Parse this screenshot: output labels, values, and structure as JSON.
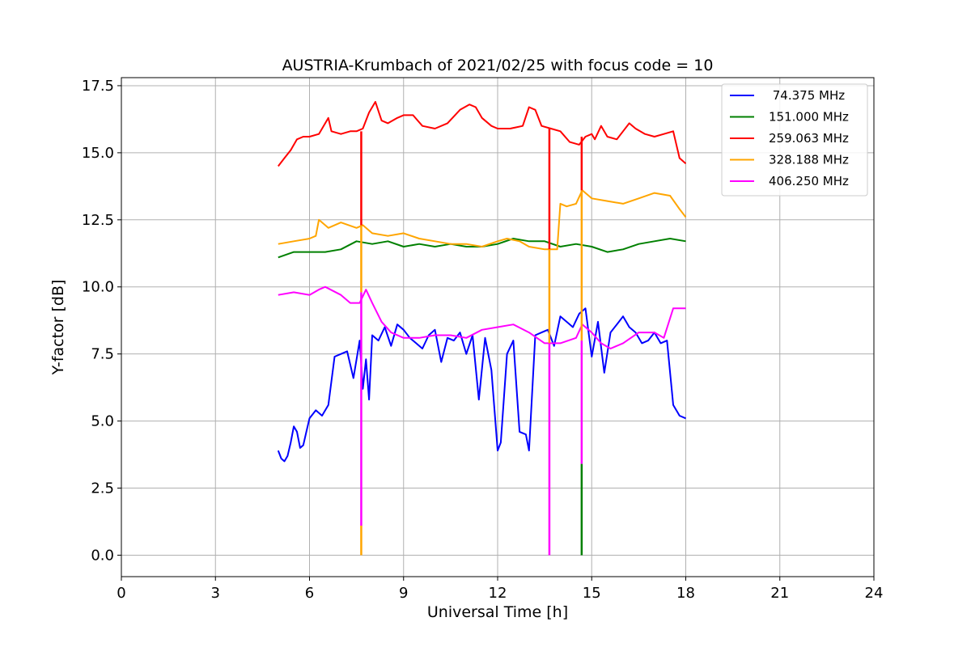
{
  "chart_data": {
    "type": "line",
    "title": "AUSTRIA-Krumbach of 2021/02/25 with focus code = 10",
    "xlabel": "Universal Time [h]",
    "ylabel": "Y-factor [dB]",
    "xlim": [
      0,
      24
    ],
    "ylim": [
      -0.8,
      17.8
    ],
    "xticks": [
      0,
      3,
      6,
      9,
      12,
      15,
      18,
      21,
      24
    ],
    "xtick_labels": [
      "0",
      "3",
      "6",
      "9",
      "12",
      "15",
      "18",
      "21",
      "24"
    ],
    "yticks": [
      0.0,
      2.5,
      5.0,
      7.5,
      10.0,
      12.5,
      15.0,
      17.5
    ],
    "ytick_labels": [
      "0.0",
      "2.5",
      "5.0",
      "7.5",
      "10.0",
      "12.5",
      "15.0",
      "17.5"
    ],
    "grid": true,
    "legend_position": "top-right",
    "series": [
      {
        "name": " 74.375 MHz",
        "color": "#0000ff",
        "x": [
          5.0,
          5.1,
          5.2,
          5.3,
          5.4,
          5.5,
          5.6,
          5.7,
          5.8,
          5.9,
          6.0,
          6.2,
          6.4,
          6.6,
          6.8,
          7.0,
          7.2,
          7.4,
          7.6,
          7.7,
          7.8,
          7.9,
          8.0,
          8.2,
          8.4,
          8.6,
          8.8,
          9.0,
          9.2,
          9.4,
          9.6,
          9.8,
          10.0,
          10.2,
          10.4,
          10.6,
          10.8,
          11.0,
          11.2,
          11.4,
          11.6,
          11.8,
          12.0,
          12.1,
          12.3,
          12.5,
          12.7,
          12.9,
          13.0,
          13.2,
          13.4,
          13.6,
          13.8,
          14.0,
          14.2,
          14.4,
          14.6,
          14.8,
          15.0,
          15.2,
          15.4,
          15.6,
          15.8,
          16.0,
          16.2,
          16.4,
          16.6,
          16.8,
          17.0,
          17.2,
          17.4,
          17.6,
          17.8,
          18.0
        ],
        "values": [
          3.9,
          3.6,
          3.5,
          3.7,
          4.2,
          4.8,
          4.6,
          4.0,
          4.1,
          4.6,
          5.1,
          5.4,
          5.2,
          5.6,
          7.4,
          7.5,
          7.6,
          6.6,
          8.0,
          6.2,
          7.3,
          5.8,
          8.2,
          8.0,
          8.5,
          7.8,
          8.6,
          8.4,
          8.1,
          7.9,
          7.7,
          8.2,
          8.4,
          7.2,
          8.1,
          8.0,
          8.3,
          7.5,
          8.2,
          5.8,
          8.1,
          6.9,
          3.9,
          4.2,
          7.5,
          8.0,
          4.6,
          4.5,
          3.9,
          8.2,
          8.3,
          8.4,
          7.8,
          8.9,
          8.7,
          8.5,
          9.0,
          9.2,
          7.4,
          8.7,
          6.8,
          8.3,
          8.6,
          8.9,
          8.5,
          8.3,
          7.9,
          8.0,
          8.3,
          7.9,
          8.0,
          5.6,
          5.2,
          5.1
        ]
      },
      {
        "name": "151.000 MHz",
        "color": "#008000",
        "x": [
          5.0,
          5.5,
          6.0,
          6.5,
          7.0,
          7.5,
          8.0,
          8.5,
          9.0,
          9.5,
          10.0,
          10.5,
          11.0,
          11.5,
          12.0,
          12.5,
          13.0,
          13.5,
          14.0,
          14.5,
          15.0,
          15.5,
          16.0,
          16.5,
          17.0,
          17.5,
          18.0
        ],
        "values": [
          11.1,
          11.3,
          11.3,
          11.3,
          11.4,
          11.7,
          11.6,
          11.7,
          11.5,
          11.6,
          11.5,
          11.6,
          11.5,
          11.5,
          11.6,
          11.8,
          11.7,
          11.7,
          11.5,
          11.6,
          11.5,
          11.3,
          11.4,
          11.6,
          11.7,
          11.8,
          11.7
        ]
      },
      {
        "name": "259.063 MHz",
        "color": "#ff0000",
        "x": [
          5.0,
          5.2,
          5.4,
          5.6,
          5.8,
          6.0,
          6.3,
          6.6,
          6.7,
          7.0,
          7.3,
          7.5,
          7.7,
          7.9,
          8.1,
          8.3,
          8.5,
          8.8,
          9.0,
          9.3,
          9.6,
          10.0,
          10.4,
          10.8,
          11.1,
          11.3,
          11.5,
          11.8,
          12.0,
          12.4,
          12.8,
          13.0,
          13.2,
          13.4,
          13.7,
          14.0,
          14.3,
          14.6,
          14.8,
          15.0,
          15.1,
          15.3,
          15.5,
          15.8,
          16.0,
          16.2,
          16.4,
          16.7,
          17.0,
          17.3,
          17.6,
          17.8,
          18.0
        ],
        "values": [
          14.5,
          14.8,
          15.1,
          15.5,
          15.6,
          15.6,
          15.7,
          16.3,
          15.8,
          15.7,
          15.8,
          15.8,
          15.9,
          16.5,
          16.9,
          16.2,
          16.1,
          16.3,
          16.4,
          16.4,
          16.0,
          15.9,
          16.1,
          16.6,
          16.8,
          16.7,
          16.3,
          16.0,
          15.9,
          15.9,
          16.0,
          16.7,
          16.6,
          16.0,
          15.9,
          15.8,
          15.4,
          15.3,
          15.6,
          15.7,
          15.5,
          16.0,
          15.6,
          15.5,
          15.8,
          16.1,
          15.9,
          15.7,
          15.6,
          15.7,
          15.8,
          14.8,
          14.6
        ]
      },
      {
        "name": "328.188 MHz",
        "color": "#ffa500",
        "x": [
          5.0,
          5.5,
          6.0,
          6.2,
          6.3,
          6.6,
          7.0,
          7.5,
          7.7,
          8.0,
          8.5,
          9.0,
          9.5,
          10.0,
          10.5,
          11.0,
          11.5,
          12.0,
          12.3,
          12.7,
          13.0,
          13.5,
          13.9,
          14.0,
          14.2,
          14.5,
          14.7,
          15.0,
          15.5,
          16.0,
          16.5,
          17.0,
          17.5,
          17.8,
          18.0
        ],
        "values": [
          11.6,
          11.7,
          11.8,
          11.9,
          12.5,
          12.2,
          12.4,
          12.2,
          12.3,
          12.0,
          11.9,
          12.0,
          11.8,
          11.7,
          11.6,
          11.6,
          11.5,
          11.7,
          11.8,
          11.7,
          11.5,
          11.4,
          11.4,
          13.1,
          13.0,
          13.1,
          13.6,
          13.3,
          13.2,
          13.1,
          13.3,
          13.5,
          13.4,
          12.9,
          12.6
        ]
      },
      {
        "name": "406.250 MHz",
        "color": "#ff00ff",
        "x": [
          5.0,
          5.5,
          6.0,
          6.3,
          6.5,
          7.0,
          7.3,
          7.6,
          7.8,
          8.0,
          8.3,
          8.6,
          9.0,
          9.5,
          10.0,
          10.5,
          11.0,
          11.5,
          12.0,
          12.5,
          13.0,
          13.5,
          14.0,
          14.5,
          14.7,
          15.0,
          15.3,
          15.6,
          16.0,
          16.5,
          17.0,
          17.3,
          17.6,
          18.0
        ],
        "values": [
          9.7,
          9.8,
          9.7,
          9.9,
          10.0,
          9.7,
          9.4,
          9.4,
          9.9,
          9.4,
          8.7,
          8.3,
          8.1,
          8.1,
          8.2,
          8.2,
          8.1,
          8.4,
          8.5,
          8.6,
          8.3,
          7.9,
          7.9,
          8.1,
          8.6,
          8.3,
          7.9,
          7.7,
          7.9,
          8.3,
          8.3,
          8.1,
          9.2,
          9.2
        ]
      }
    ],
    "spikes": [
      {
        "x": 7.65,
        "segments": [
          {
            "color": "#ff0000",
            "from": 15.8,
            "to": 12.3
          },
          {
            "color": "#ffa500",
            "from": 12.3,
            "to": 9.8
          },
          {
            "color": "#ff00ff",
            "from": 9.8,
            "to": 1.1
          },
          {
            "color": "#ffa500",
            "from": 1.1,
            "to": 0.0
          }
        ]
      },
      {
        "x": 13.65,
        "segments": [
          {
            "color": "#ff0000",
            "from": 15.9,
            "to": 11.4
          },
          {
            "color": "#ffa500",
            "from": 11.4,
            "to": 7.9
          },
          {
            "color": "#ff00ff",
            "from": 7.9,
            "to": 0.0
          }
        ]
      },
      {
        "x": 14.68,
        "segments": [
          {
            "color": "#ff0000",
            "from": 15.6,
            "to": 13.6
          },
          {
            "color": "#ffa500",
            "from": 13.6,
            "to": 8.0
          },
          {
            "color": "#ff00ff",
            "from": 8.0,
            "to": 3.4
          },
          {
            "color": "#008000",
            "from": 3.4,
            "to": 0.0
          }
        ]
      }
    ]
  }
}
